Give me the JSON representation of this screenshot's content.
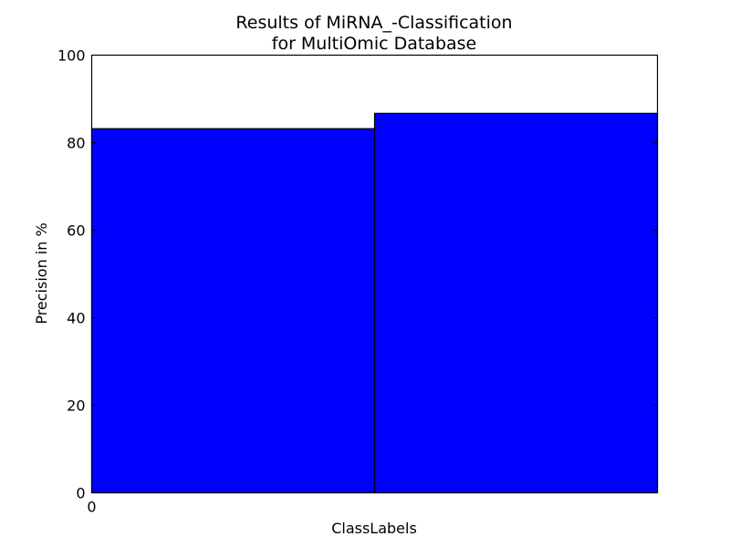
{
  "chart_data": {
    "type": "bar",
    "title_line1": "Results of MiRNA_-Classification",
    "title_line2": "for MultiOmic Database",
    "xlabel": "ClassLabels",
    "ylabel": "Precision in %",
    "ylim": [
      0,
      100
    ],
    "y_ticks": [
      "0",
      "20",
      "40",
      "60",
      "80",
      "100"
    ],
    "x_tick_labels": [
      "0"
    ],
    "values": [
      83.2,
      86.7
    ],
    "bar_color": "#0000ff",
    "edge_color": "#000000",
    "grid": false,
    "legend": "none"
  }
}
